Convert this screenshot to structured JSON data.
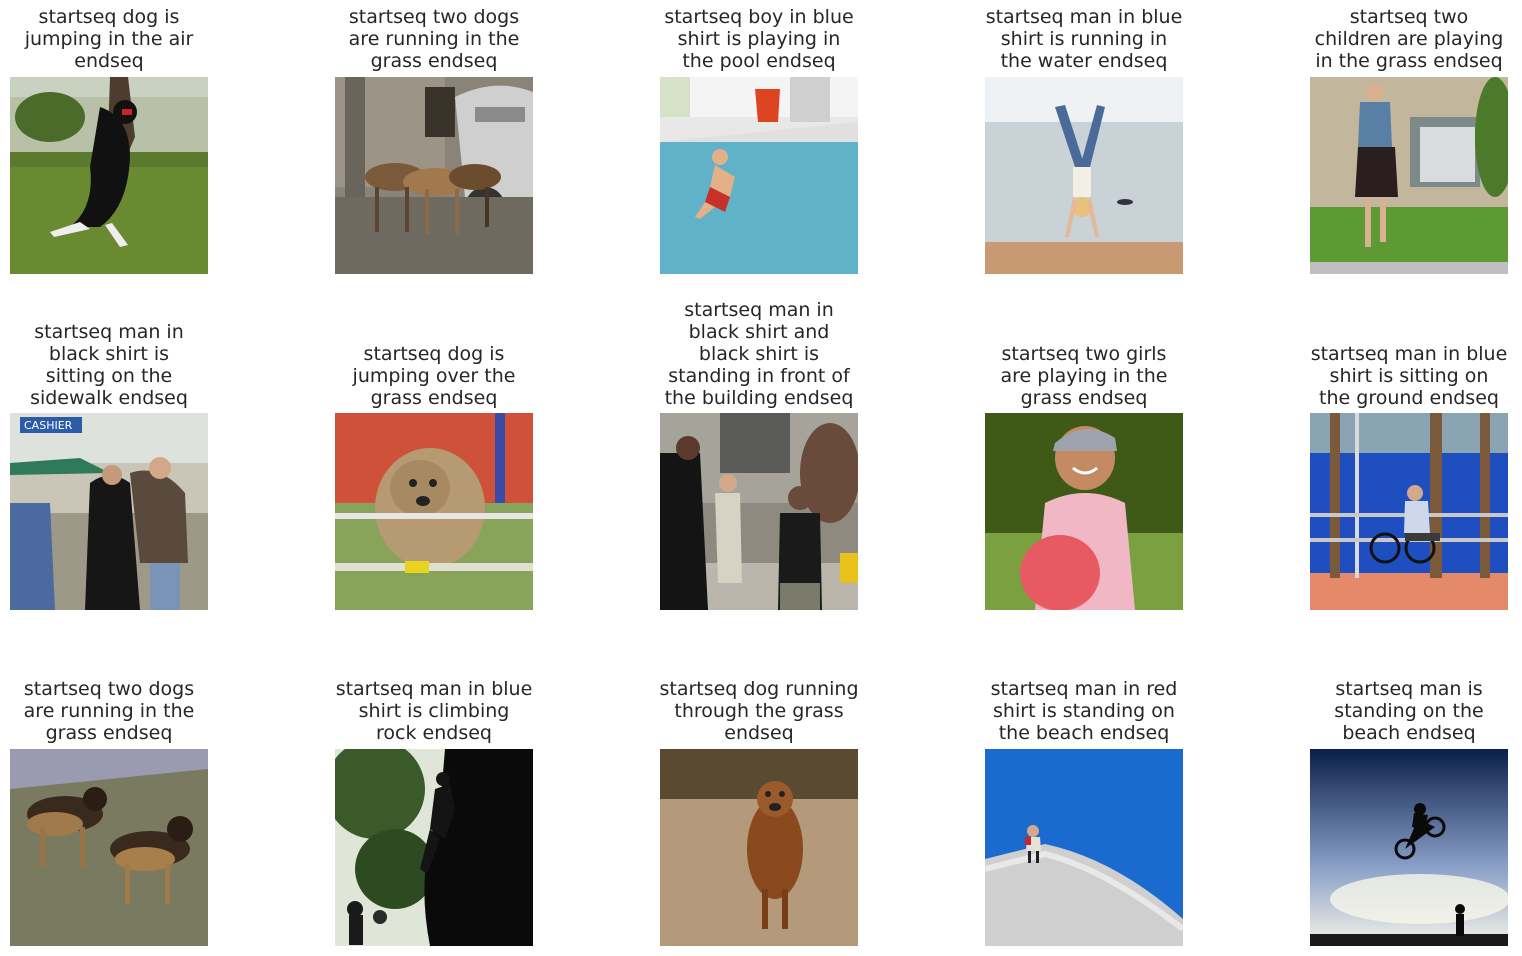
{
  "items": [
    {
      "caption": "startseq dog is\njumping in the air\nendseq",
      "scene": "dog-jumping-yard"
    },
    {
      "caption": "startseq two dogs\nare running in the\ngrass endseq",
      "scene": "dogs-pack-street"
    },
    {
      "caption": "startseq boy in blue\nshirt is playing in\nthe pool endseq",
      "scene": "boy-jumping-pool"
    },
    {
      "caption": "startseq man in blue\nshirt is running in\nthe water endseq",
      "scene": "handstand-beach"
    },
    {
      "caption": "startseq two\nchildren are playing\nin the grass endseq",
      "scene": "woman-walking-grass"
    },
    {
      "caption": "startseq man in\nblack shirt is\nsitting on the\nsidewalk endseq",
      "scene": "couple-market"
    },
    {
      "caption": "startseq dog is\njumping over the\ngrass endseq",
      "scene": "dog-agility-jump"
    },
    {
      "caption": "startseq man in\nblack shirt and\nblack shirt is\nstanding in front of\nthe building endseq",
      "scene": "people-street"
    },
    {
      "caption": "startseq two girls\nare playing in the\ngrass endseq",
      "scene": "girl-smiling-hat"
    },
    {
      "caption": "startseq man in blue\nshirt is sitting on\nthe ground endseq",
      "scene": "man-bench-bike"
    },
    {
      "caption": "startseq two dogs\nare running in the\ngrass endseq",
      "scene": "german-shepherds"
    },
    {
      "caption": "startseq man in blue\nshirt is climbing\nrock endseq",
      "scene": "rock-climber-silhouette"
    },
    {
      "caption": "startseq dog running\nthrough the grass\nendseq",
      "scene": "dog-running-field"
    },
    {
      "caption": "startseq man in red\nshirt is standing on\nthe beach endseq",
      "scene": "person-snow-slope"
    },
    {
      "caption": "startseq man is\nstanding on the\nbeach endseq",
      "scene": "bmx-sky-silhouette"
    }
  ]
}
